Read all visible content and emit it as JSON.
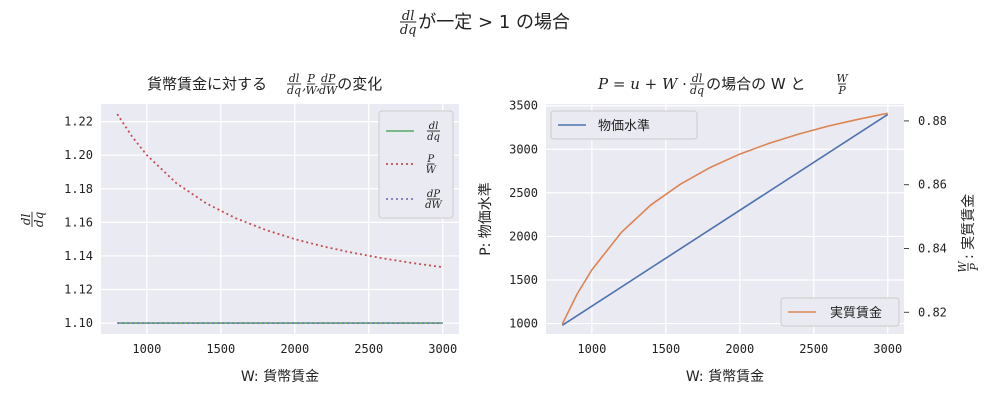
{
  "suptitle": {
    "frac_num": "dl",
    "frac_den": "dq",
    "text": " が一定 > 1 の場合"
  },
  "chart_data": [
    {
      "type": "line",
      "title": {
        "text": "貨幣賃金に対する ",
        "fracs": [
          [
            "dl",
            "dq"
          ],
          [
            "P",
            "W"
          ],
          [
            "dP",
            "dW"
          ]
        ],
        "suffix": " の変化"
      },
      "xlabel": "W: 貨幣賃金",
      "ylabel": {
        "num": "dl",
        "den": "dq"
      },
      "xlim": [
        690,
        3110
      ],
      "ylim": [
        1.0935,
        1.2305
      ],
      "xticks": [
        1000,
        1500,
        2000,
        2500,
        3000
      ],
      "yticks": [
        1.1,
        1.12,
        1.14,
        1.16,
        1.18,
        1.2,
        1.22
      ],
      "ytick_labels": [
        "1.10",
        "1.12",
        "1.14",
        "1.16",
        "1.18",
        "1.20",
        "1.22"
      ],
      "grid": true,
      "legend_position": "top-right",
      "series": [
        {
          "name": {
            "num": "dl",
            "den": "dq"
          },
          "style": "solid",
          "color": "#55a868",
          "x": [
            800,
            3000
          ],
          "y": [
            1.1,
            1.1
          ]
        },
        {
          "name": {
            "num": "P",
            "den": "W"
          },
          "style": "dotted",
          "color": "#c44e52",
          "x": [
            800,
            900,
            1000,
            1200,
            1400,
            1600,
            1800,
            2000,
            2200,
            2400,
            2600,
            2800,
            3000
          ],
          "y": [
            1.2245,
            1.2111,
            1.2,
            1.1833,
            1.1714,
            1.1625,
            1.1556,
            1.15,
            1.1455,
            1.1417,
            1.1385,
            1.1357,
            1.1333
          ]
        },
        {
          "name": {
            "num": "dP",
            "den": "dW"
          },
          "style": "dotted",
          "color": "#8172b3",
          "x": [
            800,
            3000
          ],
          "y": [
            1.1,
            1.1
          ]
        }
      ]
    },
    {
      "type": "line",
      "title": {
        "text": "P = u + W · ",
        "fracs": [
          [
            "dl",
            "dq"
          ]
        ],
        "mid": " の場合の W と ",
        "fracs2": [
          [
            "W",
            "P"
          ]
        ]
      },
      "xlabel": "W: 貨幣賃金",
      "ylabel": "P: 物価水準",
      "y2label": {
        "num": "W",
        "den": "P",
        "text": ": 実質賃金"
      },
      "xlim": [
        690,
        3110
      ],
      "ylim": [
        880,
        3520
      ],
      "y2lim": [
        0.8132,
        0.8853
      ],
      "xticks": [
        1000,
        1500,
        2000,
        2500,
        3000
      ],
      "yticks": [
        1000,
        1500,
        2000,
        2500,
        3000,
        3500
      ],
      "y2ticks": [
        0.82,
        0.84,
        0.86,
        0.88
      ],
      "y2tick_labels": [
        "0.82",
        "0.84",
        "0.86",
        "0.88"
      ],
      "grid": true,
      "legend_position": "top-left / bottom-right",
      "series": [
        {
          "name": "物価水準",
          "axis": "left",
          "color": "#4c72b0",
          "x": [
            800,
            3000
          ],
          "y": [
            980,
            3400
          ]
        },
        {
          "name": "実質賃金",
          "axis": "right",
          "color": "#dd8452",
          "x": [
            800,
            900,
            1000,
            1200,
            1400,
            1600,
            1800,
            2000,
            2200,
            2400,
            2600,
            2800,
            3000
          ],
          "y": [
            0.8163,
            0.8257,
            0.8333,
            0.8451,
            0.8537,
            0.8602,
            0.8654,
            0.8696,
            0.873,
            0.8759,
            0.8784,
            0.8805,
            0.8824
          ]
        }
      ]
    }
  ]
}
